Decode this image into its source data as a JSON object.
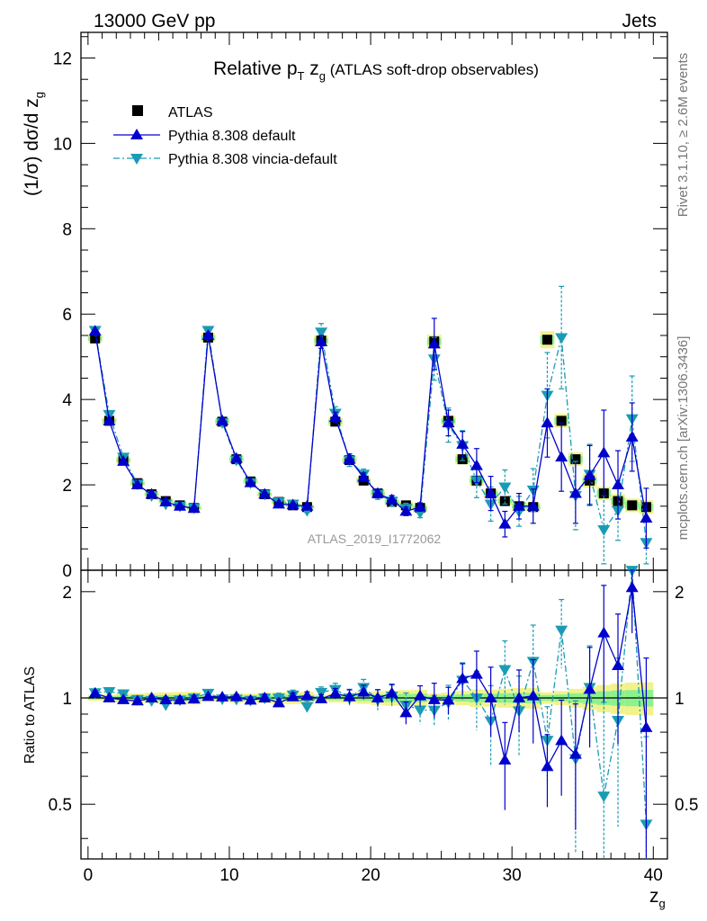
{
  "header": {
    "left": "13000 GeV pp",
    "right": "Jets"
  },
  "side_labels": {
    "rivet": "Rivet 3.1.10, ≥ 2.6M events",
    "mcplots": "mcplots.cern.ch [arXiv:1306.3436]"
  },
  "chart_data": {
    "type": "scatter",
    "title": "Relative pT zg (ATLAS soft-drop observables)",
    "title_parts": {
      "p": "Relative p",
      "sub_T": "T",
      "z": " z",
      "sub_g": "g",
      "rest": " (ATLAS soft-drop observables)"
    },
    "analysis_tag": "ATLAS_2019_I1772062",
    "xlabel": "z",
    "xlabel_sub": "g",
    "ylabel": "(1/σ) dσ/d z",
    "ylabel_sub": "g",
    "ratio_ylabel": "Ratio to ATLAS",
    "xlim": [
      -0.5,
      41
    ],
    "ylim": [
      0,
      12.6
    ],
    "ratio_ylim": [
      0.35,
      2.3
    ],
    "ratio_scale": "log",
    "x_ticks": [
      "0",
      "10",
      "20",
      "30",
      "40"
    ],
    "y_ticks": [
      "0",
      "2",
      "4",
      "6",
      "8",
      "10",
      "12"
    ],
    "ratio_ticks": [
      "0.5",
      "1",
      "2"
    ],
    "legend_position": "top-left",
    "legend": [
      {
        "label": "ATLAS",
        "marker": "square"
      },
      {
        "label": "Pythia 8.308 default",
        "marker": "triangle-up"
      },
      {
        "label": "Pythia 8.308 vincia-default",
        "marker": "triangle-down"
      }
    ],
    "colors": {
      "data": "#000000",
      "default": "#0000cc",
      "vincia": "#1a9bb5",
      "band_inner": "#8cf28c",
      "band_outer": "#f2f28c"
    },
    "x": [
      0.5,
      1.5,
      2.5,
      3.5,
      4.5,
      5.5,
      6.5,
      7.5,
      8.5,
      9.5,
      10.5,
      11.5,
      12.5,
      13.5,
      14.5,
      15.5,
      16.5,
      17.5,
      18.5,
      19.5,
      20.5,
      21.5,
      22.5,
      23.5,
      24.5,
      25.5,
      26.5,
      27.5,
      28.5,
      29.5,
      30.5,
      31.5,
      32.5,
      33.5,
      34.5,
      35.5,
      36.5,
      37.5,
      38.5,
      39.5
    ],
    "series": [
      {
        "name": "ATLAS",
        "values": [
          5.43,
          3.5,
          2.58,
          2.04,
          1.78,
          1.62,
          1.52,
          1.46,
          5.45,
          3.48,
          2.6,
          2.08,
          1.78,
          1.6,
          1.52,
          1.48,
          5.38,
          3.48,
          2.58,
          2.1,
          1.8,
          1.6,
          1.52,
          1.46,
          5.36,
          3.5,
          2.6,
          2.1,
          1.8,
          1.62,
          1.5,
          1.48,
          5.4,
          3.5,
          2.6,
          2.1,
          1.8,
          1.62,
          1.52,
          1.48
        ],
        "errors": [
          0.05,
          0.04,
          0.04,
          0.03,
          0.03,
          0.03,
          0.03,
          0.03,
          0.05,
          0.04,
          0.04,
          0.03,
          0.03,
          0.03,
          0.03,
          0.03,
          0.06,
          0.05,
          0.04,
          0.04,
          0.04,
          0.04,
          0.04,
          0.04,
          0.08,
          0.06,
          0.06,
          0.06,
          0.05,
          0.05,
          0.05,
          0.05,
          0.1,
          0.08,
          0.08,
          0.08,
          0.08,
          0.08,
          0.08,
          0.08
        ]
      },
      {
        "name": "Pythia 8.308 default",
        "values": [
          5.6,
          3.5,
          2.55,
          2.0,
          1.78,
          1.6,
          1.5,
          1.45,
          5.5,
          3.5,
          2.62,
          2.05,
          1.78,
          1.55,
          1.53,
          1.5,
          5.35,
          3.58,
          2.6,
          2.18,
          1.8,
          1.65,
          1.38,
          1.48,
          5.3,
          3.45,
          2.95,
          2.45,
          1.8,
          1.08,
          1.5,
          1.5,
          3.45,
          2.65,
          1.8,
          2.22,
          2.75,
          2.0,
          3.12,
          1.22
        ],
        "errors": [
          0.04,
          0.04,
          0.04,
          0.03,
          0.03,
          0.03,
          0.03,
          0.03,
          0.06,
          0.05,
          0.04,
          0.04,
          0.04,
          0.04,
          0.04,
          0.04,
          0.15,
          0.12,
          0.12,
          0.1,
          0.1,
          0.1,
          0.1,
          0.1,
          0.6,
          0.3,
          0.3,
          0.4,
          0.4,
          0.3,
          0.3,
          0.4,
          0.8,
          0.8,
          0.7,
          0.7,
          1.0,
          0.8,
          0.8,
          0.7
        ]
      },
      {
        "name": "Pythia 8.308 vincia-default",
        "values": [
          5.62,
          3.65,
          2.65,
          2.02,
          1.75,
          1.55,
          1.5,
          1.46,
          5.62,
          3.46,
          2.58,
          2.05,
          1.78,
          1.6,
          1.55,
          1.4,
          5.58,
          3.68,
          2.58,
          2.25,
          1.78,
          1.62,
          1.45,
          1.35,
          4.95,
          3.4,
          2.92,
          2.1,
          1.55,
          1.95,
          1.38,
          1.88,
          4.1,
          5.45,
          1.75,
          2.25,
          0.95,
          1.4,
          3.55,
          0.65
        ],
        "errors": [
          0.05,
          0.04,
          0.04,
          0.03,
          0.03,
          0.03,
          0.03,
          0.03,
          0.08,
          0.06,
          0.05,
          0.05,
          0.05,
          0.05,
          0.05,
          0.05,
          0.2,
          0.15,
          0.15,
          0.12,
          0.12,
          0.12,
          0.12,
          0.12,
          0.5,
          0.4,
          0.35,
          0.4,
          0.4,
          0.4,
          0.35,
          0.5,
          1.0,
          1.2,
          0.8,
          0.7,
          0.8,
          0.7,
          1.0,
          0.5
        ]
      }
    ]
  }
}
